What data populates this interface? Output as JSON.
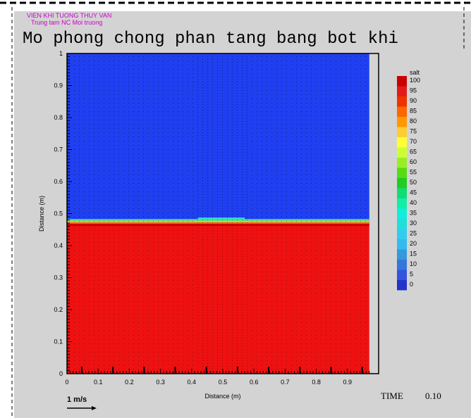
{
  "header": {
    "institute": "VIEN KHI TUONG THUY VAN",
    "center": "Trung tam NC Moi truong",
    "title": "Mo phong chong phan tang bang bot khi"
  },
  "footer": {
    "time_label": "TIME",
    "time_value": "0.10",
    "vector_scale_label": "1 m/s"
  },
  "colors": {
    "background": "#d3d3d3",
    "title": "#cc00cc",
    "upper_layer": "#1f3ff0",
    "lower_layer": "#ee1111"
  },
  "chart_data": {
    "type": "heatmap",
    "xlabel": "Distance (m)",
    "ylabel": "Distance (m)",
    "xlim": [
      0,
      1
    ],
    "ylim": [
      0,
      1
    ],
    "x_ticks": [
      "0",
      "0.1",
      "0.2",
      "0.3",
      "0.4",
      "0.5",
      "0.6",
      "0.7",
      "0.8",
      "0.9"
    ],
    "y_ticks": [
      "0",
      "0.1",
      "0.2",
      "0.3",
      "0.4",
      "0.5",
      "0.6",
      "0.7",
      "0.8",
      "0.9",
      "1"
    ],
    "x_extent": 0.97,
    "field": "salt",
    "interface_depth": 0.47,
    "lower_value": 100,
    "upper_value": 0,
    "colorbar": {
      "title": "salt",
      "levels": [
        "100",
        "95",
        "90",
        "85",
        "80",
        "75",
        "70",
        "65",
        "60",
        "55",
        "50",
        "45",
        "40",
        "35",
        "30",
        "25",
        "20",
        "15",
        "10",
        "5",
        "0"
      ],
      "colors": [
        "#cc0000",
        "#e21a1a",
        "#ee3300",
        "#ff6600",
        "#ff9900",
        "#ffcc33",
        "#ffff33",
        "#ccff33",
        "#99ee22",
        "#55dd11",
        "#22cc22",
        "#11dd77",
        "#11eeaa",
        "#11eedd",
        "#22dddd",
        "#33ccee",
        "#33bbee",
        "#3399dd",
        "#3377dd",
        "#3355dd",
        "#2233cc"
      ]
    }
  }
}
